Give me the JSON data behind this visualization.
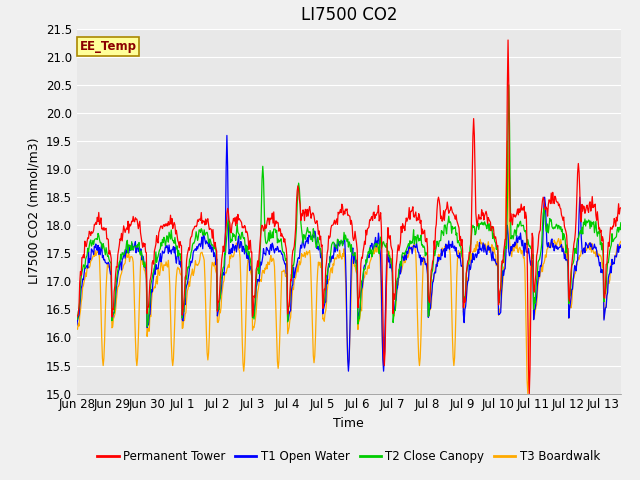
{
  "title": "LI7500 CO2",
  "ylabel": "LI7500 CO2 (mmol/m3)",
  "xlabel": "Time",
  "ylim": [
    15.0,
    21.5
  ],
  "yticks": [
    15.0,
    15.5,
    16.0,
    16.5,
    17.0,
    17.5,
    18.0,
    18.5,
    19.0,
    19.5,
    20.0,
    20.5,
    21.0,
    21.5
  ],
  "xtick_labels": [
    "Jun 28",
    "Jun 29",
    "Jun 30",
    "Jul 1",
    "Jul 2",
    "Jul 3",
    "Jul 4",
    "Jul 5",
    "Jul 6",
    "Jul 7",
    "Jul 8",
    "Jul 9",
    "Jul 10",
    "Jul 11",
    "Jul 12",
    "Jul 13"
  ],
  "colors": {
    "permanent_tower": "#ff0000",
    "t1_open_water": "#0000ff",
    "t2_close_canopy": "#00cc00",
    "t3_boardwalk": "#ffaa00"
  },
  "legend_labels": [
    "Permanent Tower",
    "T1 Open Water",
    "T2 Close Canopy",
    "T3 Boardwalk"
  ],
  "annotation_text": "EE_Temp",
  "annotation_color": "#8B0000",
  "annotation_bg": "#ffff99",
  "plot_bg_color": "#e8e8e8",
  "fig_bg_color": "#f0f0f0",
  "grid_color": "#ffffff",
  "title_fontsize": 12,
  "label_fontsize": 9,
  "tick_fontsize": 8.5,
  "n_points_per_day": 48,
  "n_days": 15.5
}
